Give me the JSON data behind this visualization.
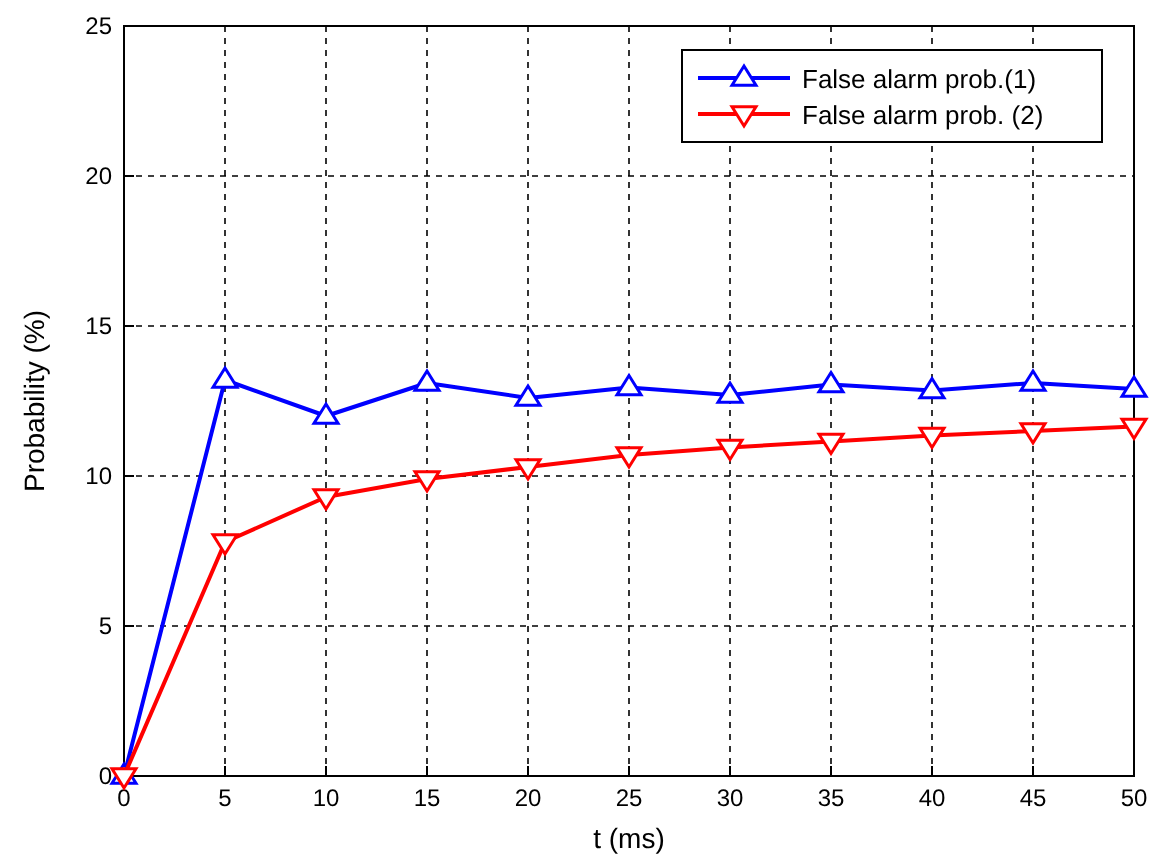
{
  "chart_data": {
    "type": "line",
    "xlabel": "t (ms)",
    "ylabel": "Probability (%)",
    "x": [
      0,
      5,
      10,
      15,
      20,
      25,
      30,
      35,
      40,
      45,
      50
    ],
    "series": [
      {
        "name": "False alarm prob.(1)",
        "color": "#0000ff",
        "values": [
          0,
          13.2,
          12.0,
          13.1,
          12.6,
          12.95,
          12.7,
          13.05,
          12.85,
          13.1,
          12.9
        ]
      },
      {
        "name": "False alarm prob. (2)",
        "color": "#ff0000",
        "values": [
          0,
          7.8,
          9.3,
          9.9,
          10.3,
          10.7,
          10.95,
          11.15,
          11.35,
          11.5,
          11.65
        ]
      }
    ],
    "xlim": [
      0,
      50
    ],
    "xticks": [
      0,
      5,
      10,
      15,
      20,
      25,
      30,
      35,
      40,
      45,
      50
    ],
    "ylim": [
      0,
      25
    ],
    "yticks": [
      0,
      5,
      10,
      15,
      20,
      25
    ],
    "grid": true,
    "legend": "top right",
    "marker": "triangle",
    "line_style": "solid"
  }
}
